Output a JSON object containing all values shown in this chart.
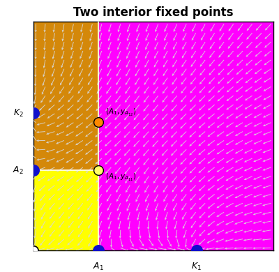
{
  "title": "Two interior fixed points",
  "xmin": 0.0,
  "xmax": 1.0,
  "ymin": 0.0,
  "ymax": 1.0,
  "A1": 0.27,
  "A2": 0.35,
  "K1": 0.68,
  "K2": 0.6,
  "yA12": 0.56,
  "yA11": 0.35,
  "color_magenta": "#FF00FF",
  "color_orange": "#D4880A",
  "color_yellow": "#FFFF00",
  "color_arrow": "#D8D8D8",
  "dot_blue": "#1010CC",
  "dot_orange_fill": "#FF8800",
  "dot_yellow_fill": "#FFFF66",
  "dot_white": "#FFFFFF",
  "nx": 26,
  "ny": 26,
  "arrow_scale": 0.038,
  "figwidth": 4.0,
  "figheight": 3.9
}
